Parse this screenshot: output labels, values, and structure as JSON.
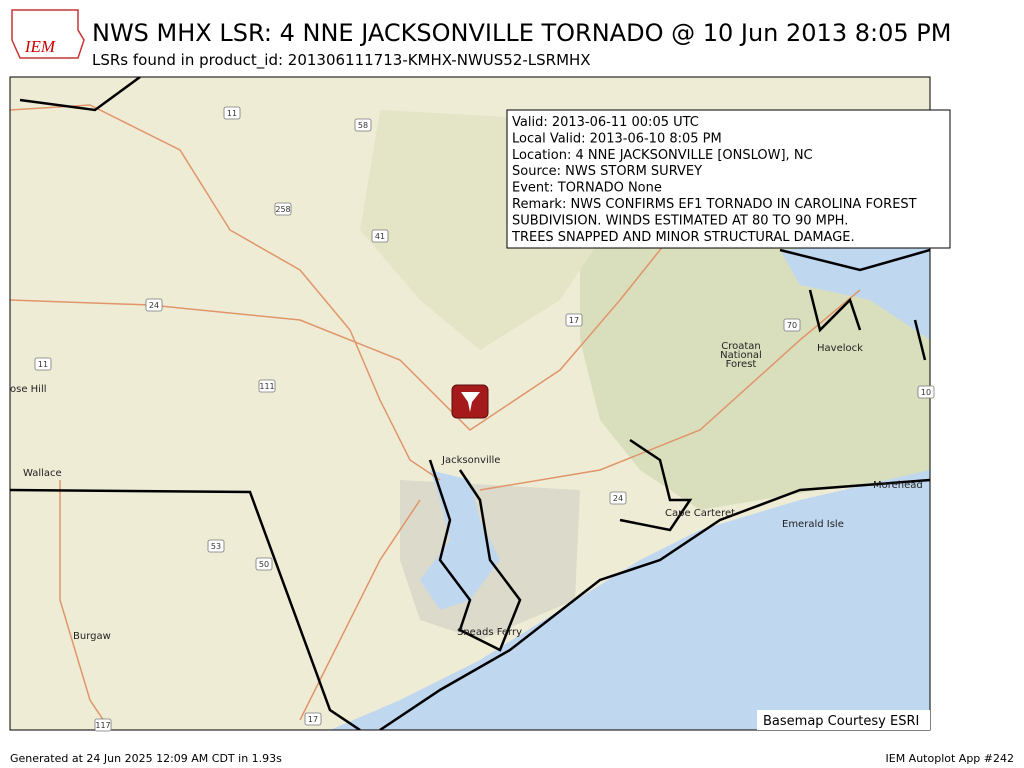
{
  "header": {
    "logo": "IEM",
    "title": "NWS MHX LSR: 4 NNE JACKSONVILLE TORNADO @ 10 Jun 2013 8:05 PM",
    "subtitle": "LSRs found in product_id: 201306111713-KMHX-NWUS52-LSRMHX"
  },
  "popup": {
    "lines": [
      "Valid: 2013-06-11 00:05 UTC",
      "Local Valid: 2013-06-10 8:05 PM",
      "Location: 4 NNE JACKSONVILLE [ONSLOW], NC",
      "Source: NWS STORM SURVEY",
      "Event: TORNADO  None",
      "Remark: NWS CONFIRMS EF1 TORNADO IN CAROLINA FOREST",
      "SUBDIVISION. WINDS ESTIMATED AT 80 TO 90 MPH.",
      "TREES SNAPPED AND MINOR STRUCTURAL DAMAGE."
    ]
  },
  "places": [
    "Jacksonville",
    "Cape Carteret",
    "Emerald Isle",
    "Sneads Ferry",
    "Burgaw",
    "Wallace",
    "ose Hill",
    "Havelock",
    "Morehead",
    "Croatan",
    "National",
    "Forest"
  ],
  "routes": [
    "11",
    "58",
    "258",
    "41",
    "24",
    "17",
    "111",
    "11",
    "53",
    "50",
    "117",
    "17",
    "24",
    "70",
    "10"
  ],
  "credit": "Basemap Courtesy ESRI",
  "footer": {
    "left": "Generated at 24 Jun 2025 12:09 AM CDT in 1.93s",
    "right": "IEM Autoplot App #242"
  }
}
